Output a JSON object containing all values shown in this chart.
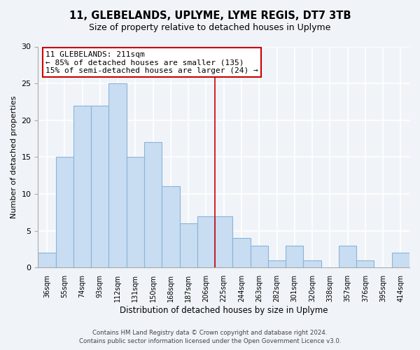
{
  "title": "11, GLEBELANDS, UPLYME, LYME REGIS, DT7 3TB",
  "subtitle": "Size of property relative to detached houses in Uplyme",
  "xlabel": "Distribution of detached houses by size in Uplyme",
  "ylabel": "Number of detached properties",
  "categories": [
    "36sqm",
    "55sqm",
    "74sqm",
    "93sqm",
    "112sqm",
    "131sqm",
    "150sqm",
    "168sqm",
    "187sqm",
    "206sqm",
    "225sqm",
    "244sqm",
    "263sqm",
    "282sqm",
    "301sqm",
    "320sqm",
    "338sqm",
    "357sqm",
    "376sqm",
    "395sqm",
    "414sqm"
  ],
  "values": [
    2,
    15,
    22,
    22,
    25,
    15,
    17,
    11,
    6,
    7,
    7,
    4,
    3,
    1,
    3,
    1,
    0,
    3,
    1,
    0,
    2
  ],
  "bar_color": "#c8ddf2",
  "bar_edge_color": "#8ab4d8",
  "vline_x": 9.5,
  "annotation_title": "11 GLEBELANDS: 211sqm",
  "annotation_line1": "← 85% of detached houses are smaller (135)",
  "annotation_line2": "15% of semi-detached houses are larger (24) →",
  "annotation_box_color": "#ffffff",
  "annotation_box_edge": "#cc0000",
  "vline_color": "#cc0000",
  "footer_line1": "Contains HM Land Registry data © Crown copyright and database right 2024.",
  "footer_line2": "Contains public sector information licensed under the Open Government Licence v3.0.",
  "ylim": [
    0,
    30
  ],
  "yticks": [
    0,
    5,
    10,
    15,
    20,
    25,
    30
  ],
  "bg_color": "#f0f4f8",
  "grid_color": "#ffffff"
}
